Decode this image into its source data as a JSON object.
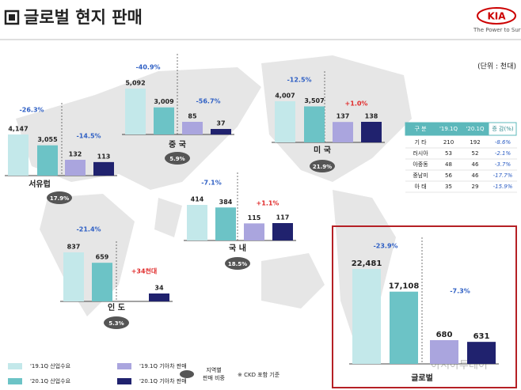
{
  "header": {
    "title": "글로벌 현지 판매",
    "logo": "KIA",
    "tagline": "The Power to Surp",
    "unit": "(단위 : 천대)"
  },
  "watermark": "아시아투데이",
  "legend": {
    "items": [
      {
        "name": "'19.1Q 산업수요",
        "color": "#c3e8ea"
      },
      {
        "name": "'20.1Q 산업수요",
        "color": "#6cc3c6"
      },
      {
        "name": "'19.1Q 기아차 판매",
        "color": "#aaa5de"
      },
      {
        "name": "'20.1Q 기아차 판매",
        "color": "#20226e"
      }
    ],
    "share_label": [
      "지역별",
      "판매 비중"
    ],
    "ckd_note": "※ CKD 포함 기준"
  },
  "table": {
    "header": [
      "구 분",
      "'19.1Q",
      "'20.1Q",
      "증 감(%)"
    ],
    "rows": [
      [
        "기 타",
        "210",
        "192",
        "-8.6%"
      ],
      [
        "러시아",
        "53",
        "52",
        "-2.1%"
      ],
      [
        "아중동",
        "48",
        "46",
        "-3.7%"
      ],
      [
        "중남미",
        "56",
        "46",
        "-17.7%"
      ],
      [
        "아 태",
        "35",
        "29",
        "-15.9%"
      ]
    ]
  },
  "chart_data": [
    {
      "type": "bar",
      "title": "서유럽",
      "values": [
        4147,
        3055,
        132,
        113
      ],
      "value_labels": [
        "4,147",
        "3,055",
        "132",
        "113"
      ],
      "changes": [
        "-26.3%",
        "-14.5%"
      ],
      "share": "17.9%"
    },
    {
      "type": "bar",
      "title": "중 국",
      "values": [
        5092,
        3009,
        85,
        37
      ],
      "value_labels": [
        "5,092",
        "3,009",
        "85",
        "37"
      ],
      "changes": [
        "-40.9%",
        "-56.7%"
      ],
      "share": "5.9%"
    },
    {
      "type": "bar",
      "title": "미 국",
      "values": [
        4007,
        3507,
        137,
        138
      ],
      "value_labels": [
        "4,007",
        "3,507",
        "137",
        "138"
      ],
      "changes": [
        "-12.5%",
        "+1.0%"
      ],
      "share": "21.9%"
    },
    {
      "type": "bar",
      "title": "국 내",
      "values": [
        414,
        384,
        115,
        117
      ],
      "value_labels": [
        "414",
        "384",
        "115",
        "117"
      ],
      "changes": [
        "-7.1%",
        "+1.1%"
      ],
      "share": "18.5%"
    },
    {
      "type": "bar",
      "title": "인 도",
      "values": [
        837,
        659,
        null,
        34
      ],
      "value_labels": [
        "837",
        "659",
        null,
        "34"
      ],
      "changes": [
        "-21.4%",
        "+34천대"
      ],
      "share": "5.3%"
    },
    {
      "type": "bar",
      "title": "글로벌",
      "values": [
        22481,
        17108,
        680,
        631
      ],
      "value_labels": [
        "22,481",
        "17,108",
        "680",
        "631"
      ],
      "changes": [
        "-23.9%",
        "-7.3%"
      ]
    }
  ]
}
